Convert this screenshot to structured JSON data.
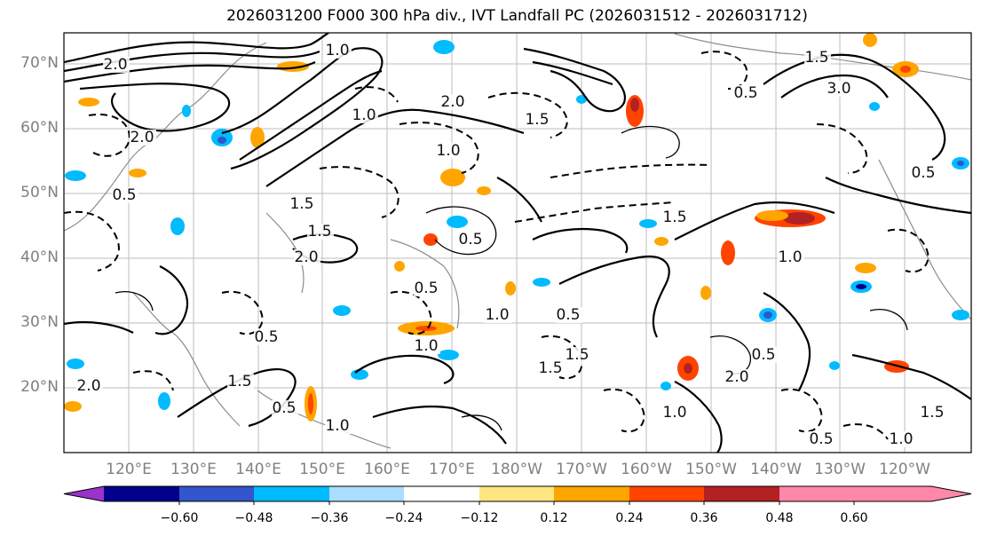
{
  "title": "2026031200 F000 300 hPa div., IVT Landfall PC (2026031512 - 2026031712)",
  "lat_labels": [
    "70°N",
    "60°N",
    "50°N",
    "40°N",
    "30°N",
    "20°N"
  ],
  "lon_labels": [
    "120°E",
    "130°E",
    "140°E",
    "150°E",
    "160°E",
    "170°E",
    "180°W",
    "170°W",
    "160°W",
    "150°W",
    "140°W",
    "130°W",
    "120°W"
  ],
  "colorbar": {
    "colors": [
      "#9933cc",
      "#000088",
      "#3355cc",
      "#00bbff",
      "#aaddff",
      "#ffffff",
      "#ffe680",
      "#ffa500",
      "#ff4400",
      "#b22222",
      "#ff88aa"
    ],
    "tick_labels": [
      "−0.60",
      "−0.48",
      "−0.36",
      "−0.24",
      "−0.12",
      "0.12",
      "0.24",
      "0.36",
      "0.48",
      "0.60"
    ]
  },
  "contour_labels": [
    "2.0",
    "1.0",
    "1.5",
    "0.5",
    "3.0",
    "2.0",
    "1.5",
    "0.5",
    "1.0",
    "2.0",
    "1.5",
    "1.0",
    "0.5",
    "1.5",
    "2.0",
    "0.5",
    "1.0",
    "1.5",
    "0.5",
    "1.0",
    "1.5",
    "2.0",
    "0.5",
    "1.0",
    "1.5",
    "0.5",
    "1.0",
    "1.0",
    "0.5",
    "1.5",
    "2.0",
    "0.5",
    "1.0",
    "1.5",
    "0.5"
  ]
}
